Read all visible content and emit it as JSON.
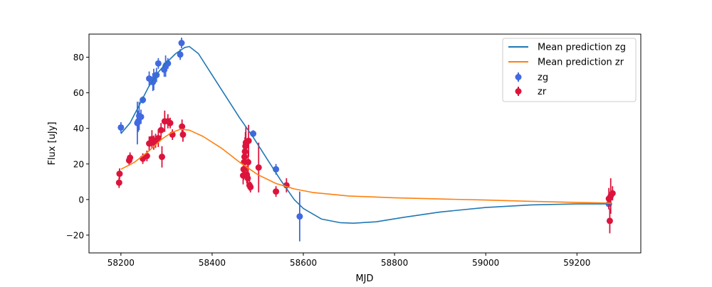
{
  "chart_data": {
    "type": "scatter",
    "title": "",
    "xlabel": "MJD",
    "ylabel": "Flux [uJy]",
    "xlim": [
      58130,
      59340
    ],
    "ylim": [
      -30,
      93
    ],
    "xticks": [
      58200,
      58400,
      58600,
      58800,
      59000,
      59200
    ],
    "yticks": [
      -20,
      0,
      20,
      40,
      60,
      80
    ],
    "grid": false,
    "legend_position": "top-right",
    "series": [
      {
        "name": "Mean prediction zg",
        "kind": "line",
        "color": "#1f77b4",
        "x": [
          58200,
          58220,
          58240,
          58260,
          58280,
          58300,
          58320,
          58340,
          58350,
          58370,
          58400,
          58430,
          58460,
          58490,
          58520,
          58550,
          58580,
          58600,
          58640,
          58680,
          58710,
          58760,
          58820,
          58900,
          59000,
          59100,
          59200,
          59275
        ],
        "y": [
          37,
          43,
          53,
          63,
          71,
          77,
          82,
          85.5,
          86,
          82,
          70,
          58,
          46,
          35,
          23,
          11,
          0,
          -5,
          -11,
          -13,
          -13.3,
          -12.5,
          -10,
          -7,
          -4.5,
          -3,
          -2.5,
          -2.5
        ]
      },
      {
        "name": "Mean prediction zr",
        "kind": "line",
        "color": "#ff7f0e",
        "x": [
          58200,
          58230,
          58260,
          58290,
          58310,
          58330,
          58350,
          58380,
          58420,
          58460,
          58500,
          58540,
          58580,
          58620,
          58700,
          58800,
          58900,
          59000,
          59100,
          59200,
          59275
        ],
        "y": [
          17,
          21,
          27,
          34,
          37.5,
          39.5,
          39,
          35.5,
          29,
          21,
          14,
          9,
          6,
          4,
          2,
          1,
          0.3,
          -0.3,
          -1,
          -1.6,
          -2
        ]
      },
      {
        "name": "zg",
        "kind": "errorbar",
        "color": "#4169e1",
        "points": [
          {
            "x": 58200,
            "y": 40.5,
            "err": 3
          },
          {
            "x": 58236,
            "y": 43,
            "err": 12
          },
          {
            "x": 58238,
            "y": 44,
            "err": 6
          },
          {
            "x": 58240,
            "y": 47,
            "err": 8
          },
          {
            "x": 58244,
            "y": 46.5,
            "err": 4
          },
          {
            "x": 58248,
            "y": 56,
            "err": 2
          },
          {
            "x": 58262,
            "y": 68,
            "err": 4
          },
          {
            "x": 58270,
            "y": 66,
            "err": 5
          },
          {
            "x": 58272,
            "y": 67.5,
            "err": 6
          },
          {
            "x": 58278,
            "y": 70,
            "err": 4
          },
          {
            "x": 58282,
            "y": 76.5,
            "err": 3
          },
          {
            "x": 58295,
            "y": 73,
            "err": 4
          },
          {
            "x": 58298,
            "y": 75,
            "err": 6
          },
          {
            "x": 58303,
            "y": 76.5,
            "err": 3
          },
          {
            "x": 58330,
            "y": 81.5,
            "err": 3
          },
          {
            "x": 58333,
            "y": 88,
            "err": 3
          },
          {
            "x": 58490,
            "y": 37,
            "err": 2
          },
          {
            "x": 58540,
            "y": 17,
            "err": 3
          },
          {
            "x": 58592,
            "y": -9.5,
            "err": 14
          },
          {
            "x": 59270,
            "y": -2.5,
            "err": 3
          }
        ]
      },
      {
        "name": "zr",
        "kind": "errorbar",
        "color": "#dc143c",
        "points": [
          {
            "x": 58196,
            "y": 9.5,
            "err": 3
          },
          {
            "x": 58197,
            "y": 14.5,
            "err": 3
          },
          {
            "x": 58218,
            "y": 22,
            "err": 3
          },
          {
            "x": 58220,
            "y": 23.5,
            "err": 3
          },
          {
            "x": 58248,
            "y": 23,
            "err": 3
          },
          {
            "x": 58257,
            "y": 24.5,
            "err": 3
          },
          {
            "x": 58262,
            "y": 31.5,
            "err": 4
          },
          {
            "x": 58268,
            "y": 34,
            "err": 5
          },
          {
            "x": 58272,
            "y": 32,
            "err": 4
          },
          {
            "x": 58276,
            "y": 33,
            "err": 4
          },
          {
            "x": 58282,
            "y": 34.5,
            "err": 5
          },
          {
            "x": 58288,
            "y": 39,
            "err": 4
          },
          {
            "x": 58290,
            "y": 24,
            "err": 6
          },
          {
            "x": 58296,
            "y": 44,
            "err": 6
          },
          {
            "x": 58303,
            "y": 44,
            "err": 4
          },
          {
            "x": 58308,
            "y": 43,
            "err": 3
          },
          {
            "x": 58313,
            "y": 36.5,
            "err": 3
          },
          {
            "x": 58334,
            "y": 41,
            "err": 4
          },
          {
            "x": 58336,
            "y": 36.5,
            "err": 4
          },
          {
            "x": 58468,
            "y": 13.5,
            "err": 5
          },
          {
            "x": 58469,
            "y": 17,
            "err": 6
          },
          {
            "x": 58470,
            "y": 21,
            "err": 8
          },
          {
            "x": 58471,
            "y": 24,
            "err": 8
          },
          {
            "x": 58472,
            "y": 27,
            "err": 8
          },
          {
            "x": 58473,
            "y": 30,
            "err": 8
          },
          {
            "x": 58474,
            "y": 32,
            "err": 9
          },
          {
            "x": 58476,
            "y": 14,
            "err": 5
          },
          {
            "x": 58478,
            "y": 12,
            "err": 4
          },
          {
            "x": 58479,
            "y": 21,
            "err": 6
          },
          {
            "x": 58480,
            "y": 33,
            "err": 9
          },
          {
            "x": 58482,
            "y": 8,
            "err": 3
          },
          {
            "x": 58484,
            "y": 7,
            "err": 3
          },
          {
            "x": 58502,
            "y": 18,
            "err": 14
          },
          {
            "x": 58540,
            "y": 4.5,
            "err": 3
          },
          {
            "x": 58563,
            "y": 8,
            "err": 4
          },
          {
            "x": 59270,
            "y": 0.5,
            "err": 6
          },
          {
            "x": 59272,
            "y": -12,
            "err": 7
          },
          {
            "x": 59274,
            "y": 2,
            "err": 10
          },
          {
            "x": 59278,
            "y": 3.5,
            "err": 4
          }
        ]
      }
    ]
  }
}
